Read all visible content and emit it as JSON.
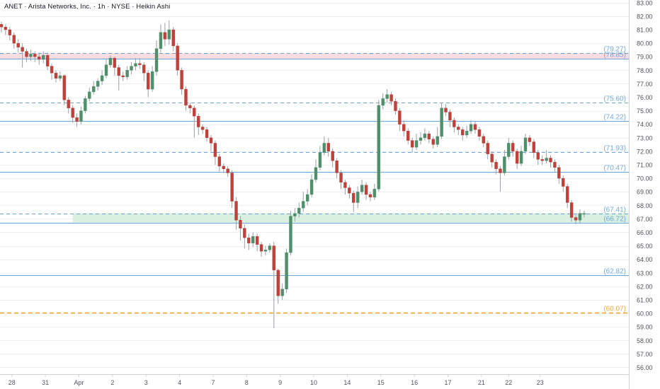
{
  "header": {
    "title": "ANET · Arista Networks, Inc. · 1h · NYSE · Heikin Ashi"
  },
  "colors": {
    "up": "#4f8f6a",
    "down": "#c0403a",
    "wick": "#9aa0a8",
    "level_blue": "#5b9bd5",
    "level_orange": "#f39c12",
    "zone_red": "#f8d7da",
    "zone_green": "#d4edda",
    "axis_text": "#50535e",
    "grid": "#eef0f3"
  },
  "chart_data": {
    "type": "candlestick",
    "style": "Heikin Ashi",
    "interval": "1h",
    "y_axis": {
      "min": 55.5,
      "max": 83.2,
      "side": "right",
      "ticks": [
        "56.00",
        "57.00",
        "58.00",
        "59.00",
        "60.00",
        "61.00",
        "62.00",
        "63.00",
        "64.00",
        "65.00",
        "66.00",
        "67.00",
        "68.00",
        "69.00",
        "70.00",
        "71.00",
        "72.00",
        "73.00",
        "74.00",
        "75.00",
        "76.00",
        "77.00",
        "78.00",
        "79.00",
        "80.00",
        "81.00",
        "82.00",
        "83.00"
      ]
    },
    "x_axis": {
      "labels": [
        "28",
        "31",
        "Apr",
        "2",
        "3",
        "4",
        "7",
        "8",
        "9",
        "10",
        "14",
        "15",
        "16",
        "17",
        "21",
        "22",
        "23"
      ],
      "label_bar_index": [
        2.5,
        10.5,
        18.5,
        26.5,
        34.5,
        42.5,
        50.5,
        58.5,
        66.5,
        74.5,
        82.5,
        90.5,
        98.5,
        106.5,
        114.5,
        121,
        128.5
      ]
    },
    "levels": [
      {
        "value": 79.27,
        "label": "(79.27)",
        "style": "dashed",
        "color": "blue"
      },
      {
        "value": 78.85,
        "label": "(78.85)",
        "style": "solid",
        "color": "blue"
      },
      {
        "value": 75.6,
        "label": "(75.60)",
        "style": "dashed",
        "color": "blue"
      },
      {
        "value": 74.22,
        "label": "(74.22)",
        "style": "solid",
        "color": "blue"
      },
      {
        "value": 71.93,
        "label": "(71.93)",
        "style": "dashed",
        "color": "blue"
      },
      {
        "value": 70.47,
        "label": "(70.47)",
        "style": "solid",
        "color": "blue"
      },
      {
        "value": 67.41,
        "label": "(67.41)",
        "style": "dashed",
        "color": "blue"
      },
      {
        "value": 66.72,
        "label": "(66.72)",
        "style": "solid",
        "color": "blue"
      },
      {
        "value": 62.82,
        "label": "(62.82)",
        "style": "solid",
        "color": "blue"
      },
      {
        "value": 60.07,
        "label": "(60.07)",
        "style": "dashed",
        "color": "orange"
      }
    ],
    "zones": [
      {
        "from": 78.85,
        "to": 79.27,
        "color": "red",
        "start_bar": 0
      },
      {
        "from": 66.72,
        "to": 67.41,
        "color": "green",
        "start_bar": 17
      }
    ],
    "candles": [
      [
        81.4,
        81.2,
        81.6,
        80.8
      ],
      [
        81.2,
        81.0,
        81.4,
        80.6
      ],
      [
        81.0,
        80.6,
        81.2,
        80.2
      ],
      [
        80.6,
        80.0,
        80.8,
        79.6
      ],
      [
        80.0,
        79.7,
        80.3,
        79.3
      ],
      [
        79.7,
        79.4,
        80.0,
        78.2
      ],
      [
        79.4,
        79.0,
        79.6,
        78.6
      ],
      [
        79.0,
        79.2,
        79.5,
        78.7
      ],
      [
        79.2,
        79.0,
        79.4,
        78.6
      ],
      [
        79.0,
        78.8,
        79.3,
        78.4
      ],
      [
        78.8,
        79.1,
        79.4,
        78.5
      ],
      [
        79.1,
        78.3,
        79.3,
        78.0
      ],
      [
        78.3,
        77.8,
        78.5,
        77.3
      ],
      [
        77.8,
        77.4,
        78.0,
        77.1
      ],
      [
        77.4,
        77.6,
        77.9,
        77.2
      ],
      [
        77.6,
        75.8,
        77.7,
        75.4
      ],
      [
        75.8,
        75.2,
        76.0,
        74.8
      ],
      [
        75.2,
        74.5,
        75.4,
        74.1
      ],
      [
        74.5,
        74.2,
        74.8,
        73.8
      ],
      [
        74.2,
        75.0,
        75.3,
        74.0
      ],
      [
        75.0,
        75.9,
        76.1,
        74.8
      ],
      [
        75.9,
        76.4,
        76.7,
        75.7
      ],
      [
        76.4,
        76.8,
        77.2,
        76.2
      ],
      [
        76.8,
        77.2,
        77.4,
        76.5
      ],
      [
        77.2,
        77.6,
        78.0,
        76.9
      ],
      [
        77.6,
        78.4,
        78.8,
        77.4
      ],
      [
        78.4,
        78.9,
        79.1,
        78.2
      ],
      [
        78.9,
        78.2,
        79.0,
        77.6
      ],
      [
        78.2,
        77.6,
        78.4,
        76.5
      ],
      [
        77.6,
        77.5,
        77.9,
        77.2
      ],
      [
        77.5,
        78.0,
        78.3,
        77.3
      ],
      [
        78.0,
        78.3,
        78.6,
        77.7
      ],
      [
        78.3,
        78.5,
        78.9,
        78.0
      ],
      [
        78.5,
        78.4,
        78.9,
        78.1
      ],
      [
        78.4,
        77.8,
        78.6,
        77.2
      ],
      [
        77.8,
        76.6,
        78.0,
        76.0
      ],
      [
        76.6,
        77.9,
        78.3,
        76.4
      ],
      [
        77.9,
        79.6,
        80.2,
        77.6
      ],
      [
        79.6,
        80.8,
        81.4,
        79.3
      ],
      [
        80.8,
        80.3,
        81.5,
        79.8
      ],
      [
        80.3,
        81.0,
        81.7,
        79.9
      ],
      [
        81.0,
        79.8,
        81.2,
        79.4
      ],
      [
        79.8,
        78.0,
        80.0,
        77.6
      ],
      [
        78.0,
        76.6,
        78.2,
        76.2
      ],
      [
        76.6,
        75.4,
        76.8,
        75.0
      ],
      [
        75.4,
        75.2,
        75.6,
        74.8
      ],
      [
        75.2,
        74.6,
        75.4,
        73.0
      ],
      [
        74.6,
        73.8,
        74.8,
        73.2
      ],
      [
        73.8,
        73.6,
        74.0,
        73.3
      ],
      [
        73.6,
        73.0,
        73.8,
        72.7
      ],
      [
        73.0,
        72.6,
        73.2,
        72.0
      ],
      [
        72.6,
        71.6,
        72.8,
        71.0
      ],
      [
        71.6,
        70.9,
        71.8,
        70.5
      ],
      [
        70.9,
        70.7,
        71.1,
        70.4
      ],
      [
        70.7,
        70.4,
        70.9,
        70.1
      ],
      [
        70.4,
        68.3,
        70.6,
        67.8
      ],
      [
        68.3,
        66.9,
        68.6,
        66.2
      ],
      [
        66.9,
        66.3,
        67.2,
        65.4
      ],
      [
        66.3,
        65.6,
        66.6,
        64.8
      ],
      [
        65.6,
        65.2,
        65.9,
        64.7
      ],
      [
        65.2,
        65.7,
        66.0,
        64.9
      ],
      [
        65.7,
        65.1,
        65.9,
        64.6
      ],
      [
        65.1,
        64.6,
        65.3,
        64.2
      ],
      [
        64.6,
        64.7,
        65.0,
        64.3
      ],
      [
        64.7,
        65.0,
        65.2,
        64.5
      ],
      [
        65.0,
        63.2,
        65.3,
        58.9
      ],
      [
        63.2,
        61.3,
        63.3,
        60.7
      ],
      [
        61.3,
        61.8,
        62.2,
        61.0
      ],
      [
        61.8,
        64.5,
        64.8,
        61.5
      ],
      [
        64.5,
        67.2,
        67.6,
        64.3
      ],
      [
        67.2,
        67.4,
        67.8,
        66.8
      ],
      [
        67.4,
        67.8,
        68.2,
        67.1
      ],
      [
        67.8,
        68.3,
        69.0,
        67.5
      ],
      [
        68.3,
        68.8,
        69.2,
        68.0
      ],
      [
        68.8,
        69.9,
        70.3,
        68.6
      ],
      [
        69.9,
        70.8,
        71.4,
        69.7
      ],
      [
        70.8,
        71.9,
        72.4,
        70.6
      ],
      [
        71.9,
        72.6,
        73.1,
        71.7
      ],
      [
        72.6,
        72.0,
        73.0,
        71.6
      ],
      [
        72.0,
        71.3,
        72.2,
        70.8
      ],
      [
        71.3,
        70.4,
        71.5,
        70.0
      ],
      [
        70.4,
        69.7,
        70.6,
        69.2
      ],
      [
        69.7,
        69.3,
        69.9,
        68.8
      ],
      [
        69.3,
        68.9,
        69.5,
        68.5
      ],
      [
        68.9,
        68.2,
        69.1,
        67.5
      ],
      [
        68.2,
        69.0,
        69.4,
        67.8
      ],
      [
        69.0,
        69.5,
        69.9,
        68.8
      ],
      [
        69.5,
        68.8,
        69.7,
        68.4
      ],
      [
        68.8,
        68.6,
        69.0,
        68.3
      ],
      [
        68.6,
        69.2,
        69.6,
        68.4
      ],
      [
        69.2,
        75.4,
        75.8,
        69.0
      ],
      [
        75.4,
        75.9,
        76.3,
        75.1
      ],
      [
        75.9,
        76.2,
        76.6,
        75.6
      ],
      [
        76.2,
        75.7,
        76.4,
        75.4
      ],
      [
        75.7,
        75.0,
        75.9,
        74.7
      ],
      [
        75.0,
        74.0,
        75.2,
        73.5
      ],
      [
        74.0,
        73.5,
        74.3,
        73.1
      ],
      [
        73.5,
        72.8,
        73.7,
        72.5
      ],
      [
        72.8,
        72.3,
        73.0,
        71.9
      ],
      [
        72.3,
        72.8,
        73.3,
        72.1
      ],
      [
        72.8,
        73.0,
        73.4,
        72.5
      ],
      [
        73.0,
        73.3,
        73.7,
        72.8
      ],
      [
        73.3,
        72.9,
        73.5,
        72.6
      ],
      [
        72.9,
        72.5,
        73.1,
        72.2
      ],
      [
        72.5,
        73.1,
        73.8,
        72.3
      ],
      [
        73.1,
        75.2,
        75.6,
        72.9
      ],
      [
        75.2,
        74.9,
        75.5,
        74.6
      ],
      [
        74.9,
        74.3,
        75.1,
        73.8
      ],
      [
        74.3,
        73.8,
        74.5,
        73.4
      ],
      [
        73.8,
        73.6,
        74.0,
        73.2
      ],
      [
        73.6,
        73.2,
        73.8,
        72.8
      ],
      [
        73.2,
        73.5,
        73.9,
        73.0
      ],
      [
        73.5,
        74.0,
        74.3,
        73.3
      ],
      [
        74.0,
        73.6,
        74.2,
        73.3
      ],
      [
        73.6,
        73.1,
        73.8,
        72.8
      ],
      [
        73.1,
        72.6,
        73.3,
        72.3
      ],
      [
        72.6,
        71.8,
        72.8,
        71.4
      ],
      [
        71.8,
        71.2,
        72.0,
        70.8
      ],
      [
        71.2,
        70.7,
        71.4,
        70.3
      ],
      [
        70.7,
        70.4,
        70.9,
        69.0
      ],
      [
        70.4,
        71.6,
        72.1,
        70.2
      ],
      [
        71.6,
        72.6,
        73.0,
        71.4
      ],
      [
        72.6,
        72.0,
        72.8,
        71.6
      ],
      [
        72.0,
        71.1,
        72.2,
        70.7
      ],
      [
        71.1,
        72.0,
        72.4,
        70.9
      ],
      [
        72.0,
        73.0,
        73.3,
        71.8
      ],
      [
        73.0,
        72.7,
        73.2,
        72.4
      ],
      [
        72.7,
        71.9,
        72.9,
        71.5
      ],
      [
        71.9,
        71.4,
        72.1,
        71.0
      ],
      [
        71.4,
        71.3,
        71.7,
        71.0
      ],
      [
        71.3,
        71.5,
        72.1,
        71.1
      ],
      [
        71.5,
        71.2,
        71.7,
        70.8
      ],
      [
        71.2,
        70.8,
        71.4,
        70.5
      ],
      [
        70.8,
        70.0,
        71.0,
        69.6
      ],
      [
        70.0,
        69.4,
        70.2,
        69.0
      ],
      [
        69.4,
        68.2,
        69.6,
        67.8
      ],
      [
        68.2,
        67.1,
        68.4,
        66.8
      ],
      [
        67.1,
        66.9,
        67.3,
        66.6
      ],
      [
        66.9,
        67.4,
        67.7,
        66.7
      ],
      [
        67.4,
        67.4,
        67.6,
        67.1
      ]
    ]
  }
}
